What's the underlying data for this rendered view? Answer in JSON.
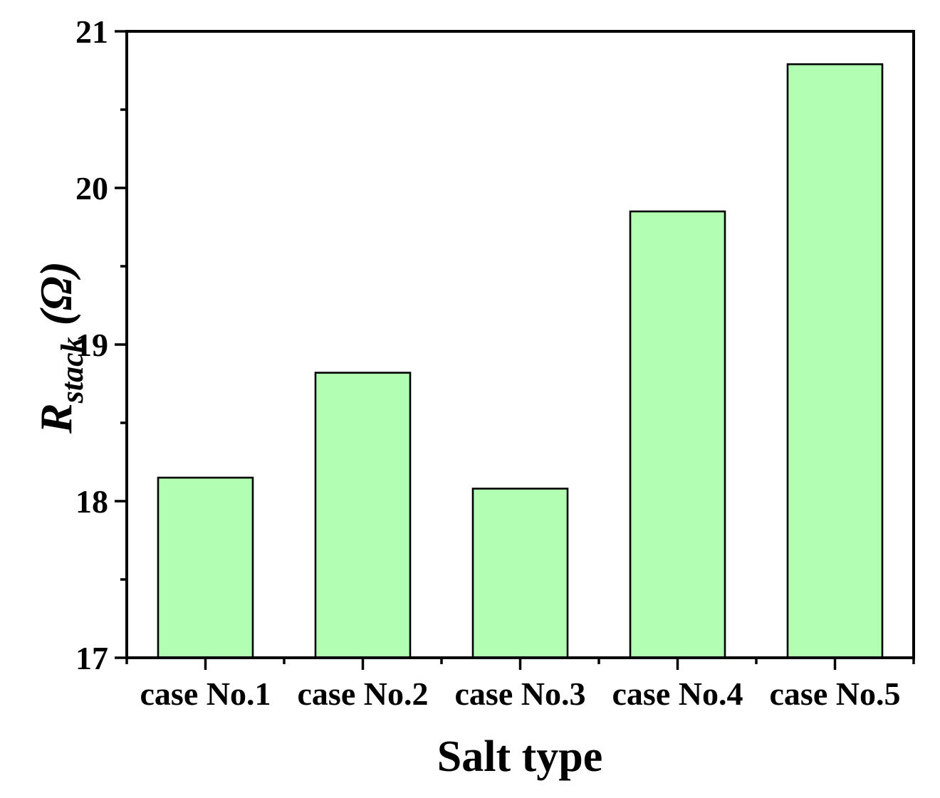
{
  "chart_data": {
    "type": "bar",
    "title": "",
    "categories": [
      "case No.1",
      "case No.2",
      "case No.3",
      "case No.4",
      "case No.5"
    ],
    "values": [
      18.15,
      18.82,
      18.08,
      19.85,
      20.79
    ],
    "xlabel": "Salt type",
    "ylabel": "R_stack (Ω)",
    "ylabel_parts": {
      "symbol": "R",
      "subscript": "stack",
      "unit": "(Ω)"
    },
    "ylim": [
      17,
      21
    ],
    "y_major_ticks": [
      17,
      18,
      19,
      20,
      21
    ],
    "y_minor_ticks": [
      17.5,
      18.5,
      19.5,
      20.5
    ],
    "x_tick_labels": [
      "case No.1",
      "case No.2",
      "case No.3",
      "case No.4",
      "case No.5"
    ],
    "grid": false,
    "legend": null,
    "colors": {
      "bar_fill": "#b2feb2",
      "bar_edge": "#000000",
      "axis": "#000000",
      "background": "#ffffff"
    }
  }
}
